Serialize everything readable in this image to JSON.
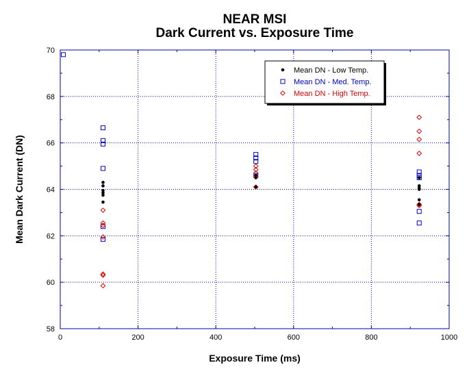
{
  "chart_data": {
    "type": "scatter",
    "title": "NEAR MSI",
    "subtitle": "Dark Current vs. Exposure Time",
    "xlabel": "Exposure Time (ms)",
    "ylabel": "Mean Dark Current (DN)",
    "xlim": [
      0,
      1000
    ],
    "ylim": [
      58,
      70
    ],
    "xticks": [
      "0",
      "200",
      "400",
      "600",
      "800",
      "1000"
    ],
    "yticks": [
      "58",
      "60",
      "62",
      "64",
      "66",
      "68",
      "70"
    ],
    "grid": true,
    "legend_position": "top-right",
    "series": [
      {
        "name": "Mean DN - Low Temp.",
        "marker": "filled-circle",
        "color": "#000000",
        "points": [
          [
            110,
            64.3
          ],
          [
            110,
            64.15
          ],
          [
            110,
            63.95
          ],
          [
            110,
            63.85
          ],
          [
            110,
            63.75
          ],
          [
            110,
            63.45
          ],
          [
            503,
            64.6
          ],
          [
            503,
            64.5
          ],
          [
            503,
            64.1
          ],
          [
            923,
            64.5
          ],
          [
            923,
            64.15
          ],
          [
            923,
            64.05
          ],
          [
            923,
            64.0
          ],
          [
            923,
            63.55
          ],
          [
            923,
            63.35
          ]
        ]
      },
      {
        "name": "Mean DN - Med. Temp.",
        "marker": "open-square",
        "color": "#0000cc",
        "points": [
          [
            8,
            69.8
          ],
          [
            110,
            66.65
          ],
          [
            110,
            66.1
          ],
          [
            110,
            65.95
          ],
          [
            110,
            64.9
          ],
          [
            110,
            62.4
          ],
          [
            110,
            61.85
          ],
          [
            503,
            65.5
          ],
          [
            503,
            65.35
          ],
          [
            503,
            65.2
          ],
          [
            503,
            64.6
          ],
          [
            923,
            64.75
          ],
          [
            923,
            64.6
          ],
          [
            923,
            64.5
          ],
          [
            923,
            63.05
          ],
          [
            923,
            62.55
          ]
        ]
      },
      {
        "name": "Mean DN - High Temp.",
        "marker": "open-diamond",
        "color": "#dd0000",
        "points": [
          [
            110,
            63.1
          ],
          [
            110,
            62.55
          ],
          [
            110,
            62.45
          ],
          [
            110,
            61.95
          ],
          [
            110,
            60.35
          ],
          [
            110,
            60.3
          ],
          [
            110,
            59.85
          ],
          [
            503,
            65.0
          ],
          [
            503,
            64.85
          ],
          [
            503,
            64.7
          ],
          [
            503,
            64.55
          ],
          [
            503,
            64.1
          ],
          [
            923,
            67.1
          ],
          [
            923,
            66.5
          ],
          [
            923,
            66.15
          ],
          [
            923,
            65.55
          ],
          [
            923,
            63.35
          ],
          [
            923,
            63.3
          ]
        ]
      }
    ]
  }
}
